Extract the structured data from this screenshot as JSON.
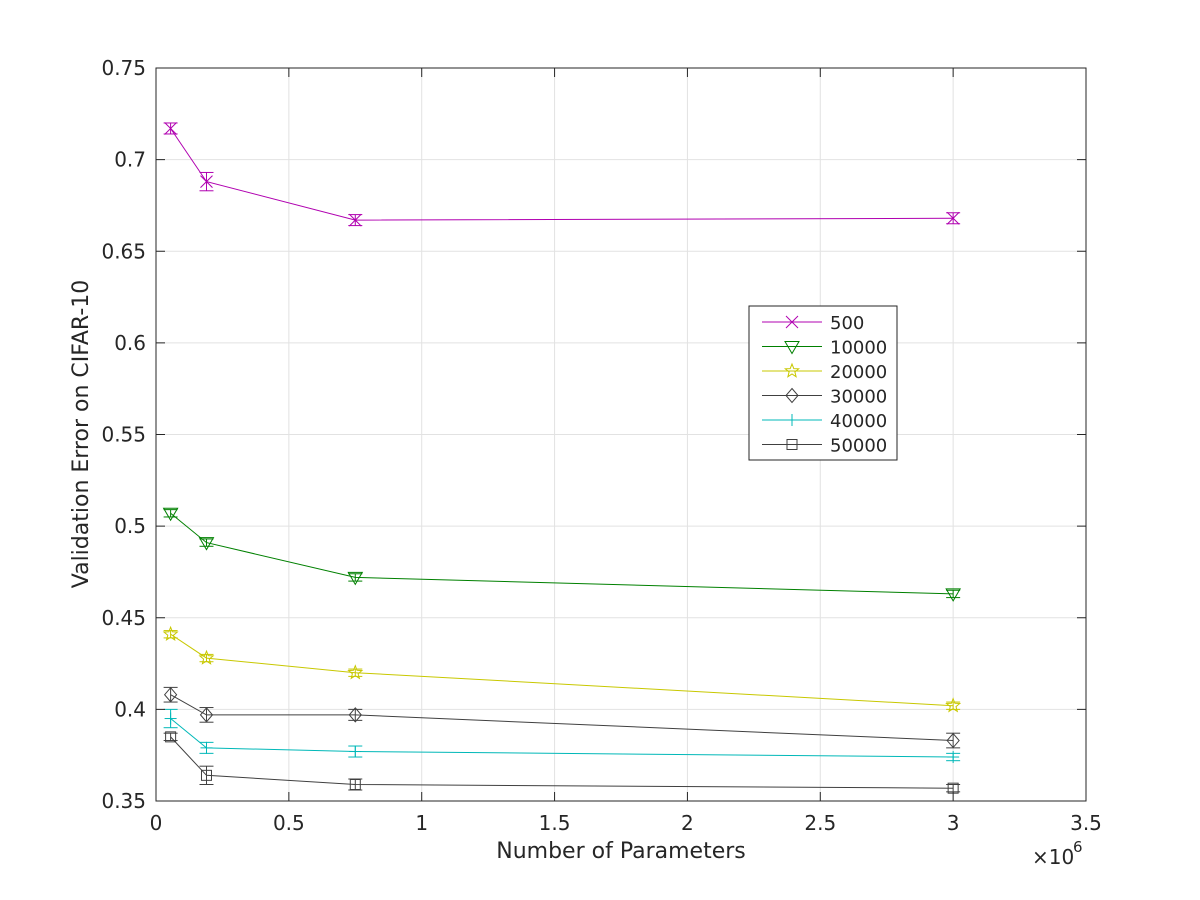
{
  "chart_data": {
    "type": "line",
    "title": "",
    "xlabel": "Number of Parameters",
    "ylabel": "Validation Error on CIFAR-10",
    "x_exponent_label": "×10",
    "x_exponent": "6",
    "xlim": [
      0,
      3.5
    ],
    "ylim": [
      0.35,
      0.75
    ],
    "xticks": [
      "0",
      "0.5",
      "1",
      "1.5",
      "2",
      "2.5",
      "3",
      "3.5"
    ],
    "yticks": [
      "0.35",
      "0.4",
      "0.45",
      "0.5",
      "0.55",
      "0.6",
      "0.65",
      "0.7",
      "0.75"
    ],
    "grid": true,
    "legend_position": "center-right",
    "x": [
      0.055,
      0.19,
      0.75,
      3.0
    ],
    "series": [
      {
        "name": "500",
        "color": "#b000b0",
        "marker": "x",
        "values": [
          0.717,
          0.688,
          0.667,
          0.668
        ],
        "errors": [
          0.003,
          0.005,
          0.003,
          0.003
        ]
      },
      {
        "name": "10000",
        "color": "#008000",
        "marker": "triangle-down",
        "values": [
          0.507,
          0.491,
          0.472,
          0.463
        ],
        "errors": [
          0.002,
          0.002,
          0.002,
          0.002
        ]
      },
      {
        "name": "20000",
        "color": "#c8c800",
        "marker": "star",
        "values": [
          0.441,
          0.428,
          0.42,
          0.402
        ],
        "errors": [
          0.002,
          0.002,
          0.002,
          0.002
        ]
      },
      {
        "name": "30000",
        "color": "#404040",
        "marker": "diamond",
        "values": [
          0.408,
          0.397,
          0.397,
          0.383
        ],
        "errors": [
          0.004,
          0.004,
          0.003,
          0.004
        ]
      },
      {
        "name": "40000",
        "color": "#00b8b8",
        "marker": "plus",
        "values": [
          0.395,
          0.379,
          0.377,
          0.374
        ],
        "errors": [
          0.005,
          0.003,
          0.003,
          0.002
        ]
      },
      {
        "name": "50000",
        "color": "#404040",
        "marker": "square",
        "values": [
          0.385,
          0.364,
          0.359,
          0.357
        ],
        "errors": [
          0.002,
          0.005,
          0.003,
          0.002
        ]
      }
    ]
  }
}
